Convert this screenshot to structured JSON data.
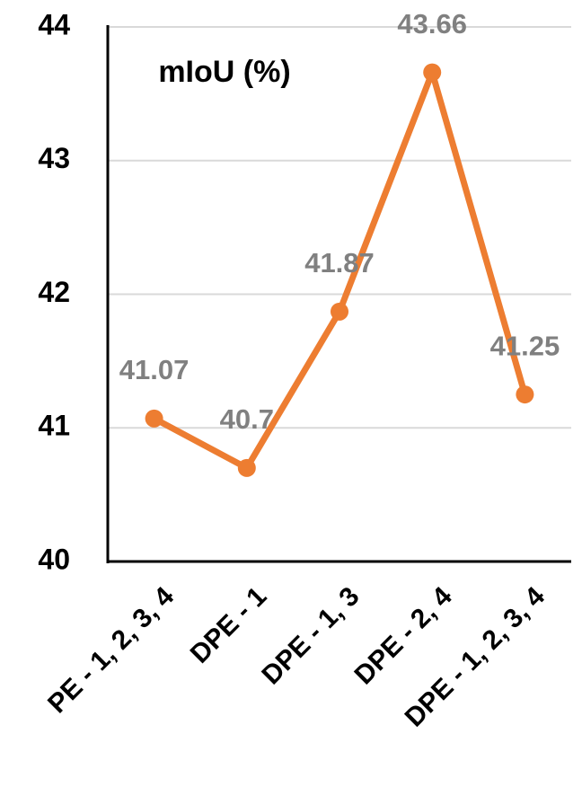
{
  "chart_data": {
    "type": "line",
    "title": "mIoU (%)",
    "categories": [
      "PE - 1, 2, 3, 4",
      "DPE - 1",
      "DPE - 1, 3",
      "DPE - 2, 4",
      "DPE - 1, 2, 3, 4"
    ],
    "values": [
      41.07,
      40.7,
      41.87,
      43.66,
      41.25
    ],
    "color": "#ED7D31",
    "ylim": [
      40,
      44
    ],
    "yticks": [
      40,
      41,
      42,
      43,
      44
    ],
    "grid": true
  }
}
